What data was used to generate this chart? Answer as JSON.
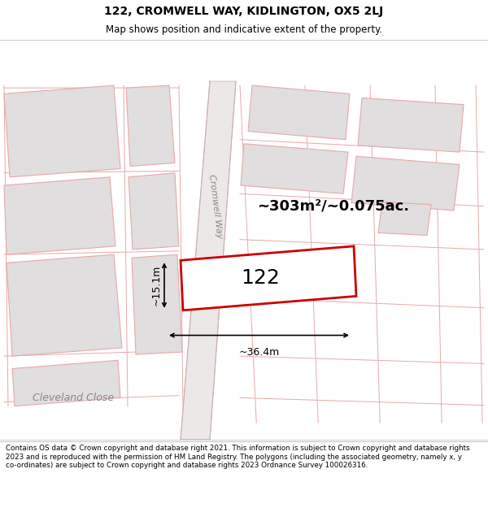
{
  "title_line1": "122, CROMWELL WAY, KIDLINGTON, OX5 2LJ",
  "title_line2": "Map shows position and indicative extent of the property.",
  "footer_text": "Contains OS data © Crown copyright and database right 2021. This information is subject to Crown copyright and database rights 2023 and is reproduced with the permission of HM Land Registry. The polygons (including the associated geometry, namely x, y co-ordinates) are subject to Crown copyright and database rights 2023 Ordnance Survey 100026316.",
  "map_bg": "#f7f5f5",
  "road_fill": "#e8e4e4",
  "plot_outline_color": "#cc0000",
  "light_red": "#e8a8a8",
  "block_fill": "#e0dede",
  "block_outline": "#d08080",
  "area_text": "~303m²/~0.075ac.",
  "label_122": "122",
  "dim_width": "~36.4m",
  "dim_height": "~15.1m",
  "road_label": "Cromwell Way",
  "street_label": "Cleveland Close",
  "title_fontsize": 10,
  "subtitle_fontsize": 8.5,
  "footer_fontsize": 6.3
}
